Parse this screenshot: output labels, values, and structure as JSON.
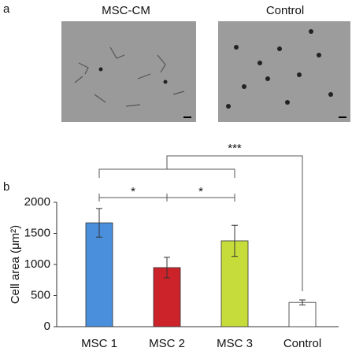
{
  "panel_a": {
    "label": "a",
    "images": [
      {
        "title": "MSC-CM"
      },
      {
        "title": "Control"
      }
    ]
  },
  "chart_data": {
    "type": "bar",
    "panel_label": "b",
    "y_label": "Cell area (μm²)",
    "categories": [
      "MSC 1",
      "MSC 2",
      "MSC 3",
      "Control"
    ],
    "values": [
      1670,
      950,
      1380,
      390
    ],
    "errors": [
      230,
      165,
      250,
      40
    ],
    "colors": [
      "#4a8fdc",
      "#cc2229",
      "#c6dc3a",
      "#ffffff"
    ],
    "ylim": [
      0,
      2000
    ],
    "yticks": [
      0,
      500,
      1000,
      1500,
      2000
    ],
    "annotations": [
      "*",
      "*",
      "***"
    ]
  }
}
